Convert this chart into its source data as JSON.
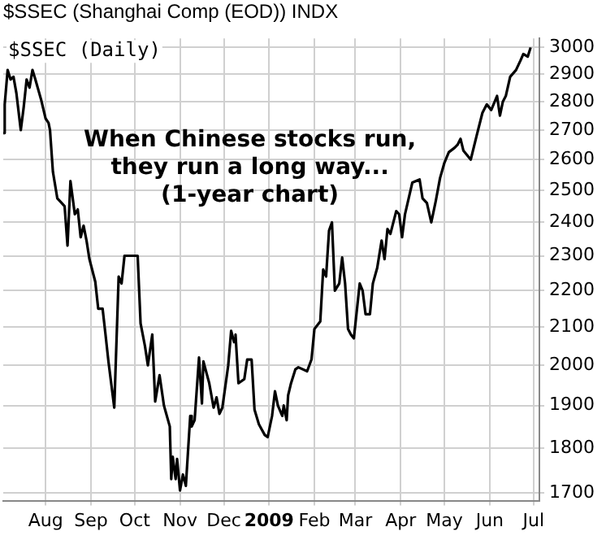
{
  "chart_data": {
    "type": "line",
    "title": "$SSEC (Shanghai Comp (EOD)) INDX",
    "annotations": [
      "When Chinese stocks run,\nthey run a long way...\n(1-year chart)"
    ],
    "x": [
      "2008-07-03",
      "2008-07-04",
      "2008-07-06",
      "2008-07-08",
      "2008-07-10",
      "2008-07-12",
      "2008-07-15",
      "2008-07-17",
      "2008-07-19",
      "2008-07-21",
      "2008-07-23",
      "2008-07-25",
      "2008-07-29",
      "2008-08-01",
      "2008-08-03",
      "2008-08-04",
      "2008-08-06",
      "2008-08-09",
      "2008-08-12",
      "2008-08-14",
      "2008-08-16",
      "2008-08-18",
      "2008-08-21",
      "2008-08-23",
      "2008-08-25",
      "2008-08-27",
      "2008-08-29",
      "2008-08-31",
      "2008-09-04",
      "2008-09-06",
      "2008-09-09",
      "2008-09-11",
      "2008-09-13",
      "2008-09-17",
      "2008-09-20",
      "2008-09-22",
      "2008-09-24",
      "2008-10-03",
      "2008-10-05",
      "2008-10-08",
      "2008-10-10",
      "2008-10-13",
      "2008-10-15",
      "2008-10-18",
      "2008-10-21",
      "2008-10-25",
      "2008-10-26",
      "2008-10-27",
      "2008-10-29",
      "2008-10-30",
      "2008-11-01",
      "2008-11-03",
      "2008-11-05",
      "2008-11-08",
      "2008-11-09",
      "2008-11-11",
      "2008-11-14",
      "2008-11-16",
      "2008-11-17",
      "2008-11-21",
      "2008-11-24",
      "2008-11-26",
      "2008-11-28",
      "2008-11-30",
      "2008-12-04",
      "2008-12-06",
      "2008-12-08",
      "2008-12-09",
      "2008-12-11",
      "2008-12-15",
      "2008-12-17",
      "2008-12-20",
      "2008-12-22",
      "2008-12-25",
      "2008-12-29",
      "2008-12-31",
      "2009-01-03",
      "2009-01-05",
      "2009-01-07",
      "2009-01-10",
      "2009-01-11",
      "2009-01-13",
      "2009-01-14",
      "2009-01-16",
      "2009-01-19",
      "2009-01-21",
      "2009-01-27",
      "2009-01-30",
      "2009-02-01",
      "2009-02-05",
      "2009-02-07",
      "2009-02-09",
      "2009-02-11",
      "2009-02-13",
      "2009-02-15",
      "2009-02-18",
      "2009-02-20",
      "2009-02-22",
      "2009-02-24",
      "2009-02-26",
      "2009-02-28",
      "2009-03-04",
      "2009-03-06",
      "2009-03-08",
      "2009-03-11",
      "2009-03-13",
      "2009-03-16",
      "2009-03-19",
      "2009-03-21",
      "2009-03-23",
      "2009-03-25",
      "2009-03-29",
      "2009-03-31",
      "2009-04-02",
      "2009-04-04",
      "2009-04-09",
      "2009-04-14",
      "2009-04-16",
      "2009-04-19",
      "2009-04-22",
      "2009-04-25",
      "2009-04-28",
      "2009-05-01",
      "2009-05-04",
      "2009-05-08",
      "2009-05-10",
      "2009-05-12",
      "2009-05-14",
      "2009-05-19",
      "2009-05-23",
      "2009-05-27",
      "2009-05-30",
      "2009-06-02",
      "2009-06-06",
      "2009-06-08",
      "2009-06-10",
      "2009-06-12",
      "2009-06-15",
      "2009-06-19",
      "2009-06-22",
      "2009-06-24",
      "2009-06-27",
      "2009-06-29"
    ],
    "series": [
      {
        "name": "$SSEC (Daily)",
        "color": "#000000",
        "values": [
          2690,
          2790,
          2915,
          2880,
          2890,
          2830,
          2700,
          2780,
          2880,
          2850,
          2915,
          2880,
          2805,
          2740,
          2725,
          2700,
          2560,
          2475,
          2460,
          2450,
          2330,
          2530,
          2425,
          2440,
          2355,
          2390,
          2345,
          2290,
          2225,
          2150,
          2150,
          2080,
          2010,
          1895,
          2240,
          2220,
          2300,
          2300,
          2110,
          2050,
          2000,
          2080,
          1910,
          1975,
          1900,
          1850,
          1730,
          1780,
          1730,
          1775,
          1705,
          1740,
          1715,
          1875,
          1850,
          1865,
          2020,
          1905,
          2010,
          1955,
          1895,
          1920,
          1880,
          1895,
          2000,
          2090,
          2060,
          2080,
          1955,
          1965,
          2015,
          2015,
          1890,
          1855,
          1830,
          1825,
          1875,
          1935,
          1900,
          1875,
          1900,
          1865,
          1925,
          1955,
          1990,
          1995,
          1985,
          2015,
          2095,
          2115,
          2260,
          2240,
          2375,
          2400,
          2200,
          2220,
          2295,
          2220,
          2095,
          2080,
          2070,
          2220,
          2200,
          2135,
          2135,
          2220,
          2265,
          2345,
          2290,
          2380,
          2365,
          2435,
          2425,
          2355,
          2425,
          2525,
          2535,
          2475,
          2460,
          2400,
          2465,
          2540,
          2590,
          2625,
          2640,
          2650,
          2670,
          2630,
          2600,
          2680,
          2760,
          2790,
          2770,
          2820,
          2750,
          2800,
          2820,
          2890,
          2915,
          2950,
          2975,
          2965,
          3000
        ]
      }
    ],
    "xlim": [
      "2008-07-03",
      "2009-07-05"
    ],
    "xticks": [
      {
        "value": "2008-08-01",
        "label": "Aug"
      },
      {
        "value": "2008-09-01",
        "label": "Sep"
      },
      {
        "value": "2008-10-01",
        "label": "Oct"
      },
      {
        "value": "2008-11-01",
        "label": "Nov"
      },
      {
        "value": "2008-12-01",
        "label": "Dec"
      },
      {
        "value": "2009-01-01",
        "label": "2009"
      },
      {
        "value": "2009-02-01",
        "label": "Feb"
      },
      {
        "value": "2009-03-01",
        "label": "Mar"
      },
      {
        "value": "2009-04-01",
        "label": "Apr"
      },
      {
        "value": "2009-05-01",
        "label": "May"
      },
      {
        "value": "2009-06-01",
        "label": "Jun"
      },
      {
        "value": "2009-07-01",
        "label": "Jul"
      }
    ],
    "ylim": [
      1683,
      3035
    ],
    "yticks": [
      1700,
      1800,
      1900,
      2000,
      2100,
      2200,
      2300,
      2400,
      2500,
      2600,
      2700,
      2800,
      2900,
      3000
    ],
    "log": true,
    "grid": true,
    "legend": "top left",
    "line_style": "solid",
    "marker": "none"
  }
}
